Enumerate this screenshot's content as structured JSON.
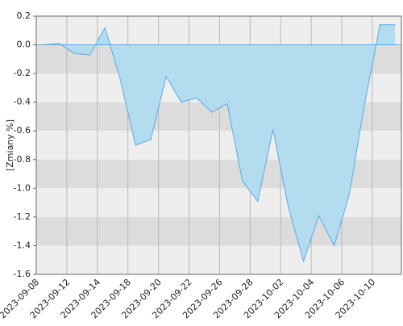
{
  "chart_data": {
    "type": "area",
    "y_label": "[Zmiany %]",
    "x": [
      "2023-09-08",
      "2023-09-11",
      "2023-09-12",
      "2023-09-13",
      "2023-09-14",
      "2023-09-15",
      "2023-09-18",
      "2023-09-19",
      "2023-09-20",
      "2023-09-21",
      "2023-09-22",
      "2023-09-25",
      "2023-09-26",
      "2023-09-27",
      "2023-09-28",
      "2023-09-29",
      "2023-10-02",
      "2023-10-03",
      "2023-10-04",
      "2023-10-05",
      "2023-10-06",
      "2023-10-09",
      "2023-10-10",
      "2023-10-11"
    ],
    "values": [
      0.0,
      0.01,
      -0.06,
      -0.07,
      0.12,
      -0.24,
      -0.7,
      -0.66,
      -0.22,
      -0.4,
      -0.37,
      -0.47,
      -0.41,
      -0.95,
      -1.09,
      -0.59,
      -1.13,
      -1.51,
      -1.19,
      -1.4,
      -1.04,
      -0.41,
      0.14,
      0.14
    ],
    "color": "#b3dcef",
    "line_color": "#5aa9e6",
    "ylim": [
      -1.6,
      0.2
    ],
    "yticks": [
      {
        "value": 0.2,
        "label": "0.2"
      },
      {
        "value": 0.0,
        "label": "0.0"
      },
      {
        "value": -0.2,
        "label": "-0.2"
      },
      {
        "value": -0.4,
        "label": "-0.4"
      },
      {
        "value": -0.6,
        "label": "-0.6"
      },
      {
        "value": -0.8,
        "label": "-0.8"
      },
      {
        "value": -1.0,
        "label": "-1.0"
      },
      {
        "value": -1.2,
        "label": "-1.2"
      },
      {
        "value": -1.4,
        "label": "-1.4"
      },
      {
        "value": -1.6,
        "label": "-1.6"
      }
    ],
    "xticks": [
      "2023-09-08",
      "2023-09-12",
      "2023-09-14",
      "2023-09-18",
      "2023-09-20",
      "2023-09-22",
      "2023-09-26",
      "2023-09-28",
      "2023-10-02",
      "2023-10-04",
      "2023-10-06",
      "2023-10-10"
    ],
    "grid": true
  }
}
